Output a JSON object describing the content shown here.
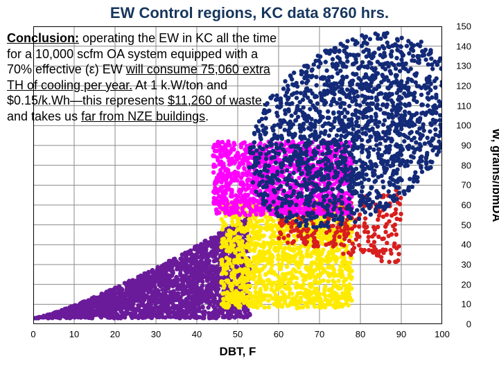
{
  "title": {
    "text": "EW Control regions, KC data 8760 hrs.",
    "color": "#17365d",
    "fontsize": 22
  },
  "xlabel": {
    "text": "DBT, F",
    "fontsize": 17
  },
  "ylabel": {
    "text": "W, grains/lbmDA",
    "fontsize": 17
  },
  "axes": {
    "xlim": [
      0,
      100
    ],
    "xtick_step": 10,
    "ylim": [
      0,
      150
    ],
    "ytick_step": 10,
    "plot_bg": "#ffffff",
    "grid_color": "#8a8a8a",
    "grid_width": 1,
    "border_color": "#000000",
    "border_width": 2
  },
  "conclusion": {
    "fontsize": 18,
    "lead": "Conclusion:",
    "t1": "  operating the EW in KC all the time for a 10,000 scfm OA system equipped with a 70% effective (ε) EW ",
    "u1": "will consume 75,060 extra TH of cooling per year.",
    "t2": "  At 1 k.W/ton and $0.15/k.Wh—this represents ",
    "u2": "$11,260 of waste",
    "t3": ", and takes us ",
    "u3": "far from NZE buildings",
    "t4": "."
  },
  "scatter": {
    "type": "scatter",
    "marker_size": 3.2,
    "series": [
      {
        "name": "purple",
        "color": "#6a1b9a",
        "n": 2200,
        "x_range": [
          0,
          53
        ],
        "y_range": [
          3,
          55
        ],
        "shape": "wedge-low"
      },
      {
        "name": "yellow",
        "color": "#ffeb00",
        "n": 1400,
        "x_range": [
          46,
          78
        ],
        "y_range": [
          8,
          62
        ],
        "shape": "block"
      },
      {
        "name": "red",
        "color": "#d81e1e",
        "n": 260,
        "x_range": [
          60,
          90
        ],
        "y_range": [
          30,
          68
        ],
        "shape": "band"
      },
      {
        "name": "magenta",
        "color": "#ff00ff",
        "n": 1100,
        "x_range": [
          44,
          78
        ],
        "y_range": [
          55,
          92
        ],
        "shape": "block"
      },
      {
        "name": "navy",
        "color": "#132a78",
        "n": 1700,
        "x_range": [
          50,
          96
        ],
        "y_range": [
          55,
          140
        ],
        "shape": "cloud-high"
      }
    ]
  }
}
